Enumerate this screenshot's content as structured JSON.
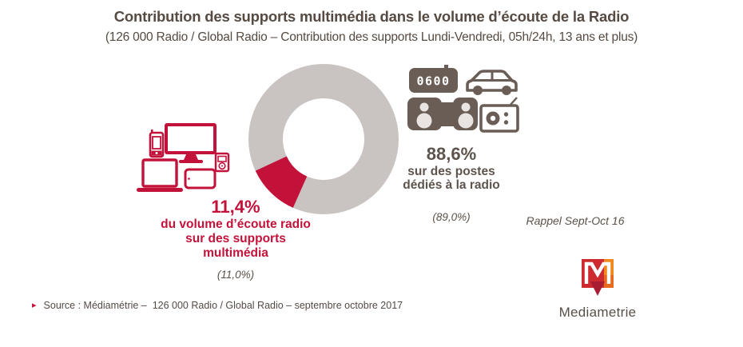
{
  "header": {
    "title": "Contribution des supports multimédia dans le volume d’écoute de la Radio",
    "subtitle": "(126 000 Radio / Global Radio – Contribution des supports Lundi-Vendredi, 05h/24h, 13 ans et plus)"
  },
  "chart_data": {
    "type": "pie",
    "variant": "donut",
    "title": "Contribution des supports multimédia dans le volume d’écoute de la Radio",
    "categories": [
      "supports multimédia",
      "postes dédiés à la radio"
    ],
    "series": [
      {
        "name": "du volume d’écoute radio sur des supports multimédia",
        "value": 11.4,
        "recall_sept_oct_16": 11.0,
        "color": "#C3123A"
      },
      {
        "name": "sur des postes dédiés à la radio",
        "value": 88.6,
        "recall_sept_oct_16": 89.0,
        "color": "#C9C3C2"
      }
    ],
    "unit": "%",
    "highlight_start_angle": 204,
    "legend_position": "none",
    "grid": false
  },
  "left_stat": {
    "value": "11,4%",
    "lines": [
      "du volume d’écoute radio",
      "sur des supports",
      "multimédia"
    ],
    "recall": "(11,0%)"
  },
  "right_stat": {
    "value": "88,6%",
    "lines": [
      "sur des postes",
      "dédiés à la radio"
    ],
    "recall": "(89,0%)"
  },
  "recall_note": "Rappel Sept-Oct 16",
  "left_icons": {
    "names": [
      "smartphone",
      "desktop-monitor",
      "laptop",
      "tablet",
      "mp3-player"
    ]
  },
  "right_icons": {
    "clock_display": "0600",
    "names": [
      "clock-radio",
      "car",
      "stereo-system",
      "portable-radio"
    ]
  },
  "source": {
    "bullet": "▸",
    "text": "Source : Médiamétrie –  126 000 Radio / Global Radio – septembre octobre 2017"
  },
  "logo": {
    "wordmark": "Mediametrie"
  },
  "colors": {
    "accent_red": "#C3123A",
    "donut_gray": "#C9C3C2",
    "icon_brown": "#6A5D56",
    "title_brown": "#564A42",
    "recall_italic": "#5B5149",
    "logo_red": "#CD2B30",
    "logo_orange": "#F18A1E",
    "logo_arrow": "#A71D32"
  }
}
